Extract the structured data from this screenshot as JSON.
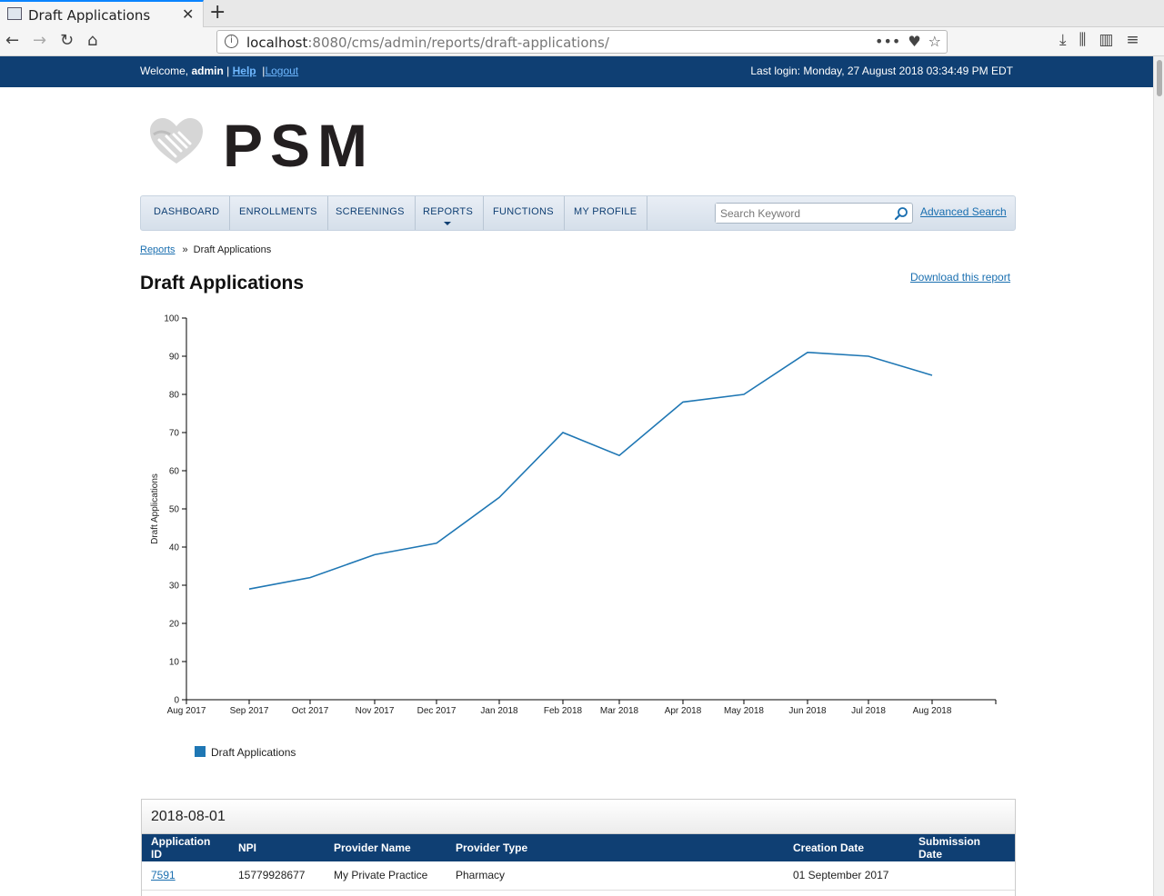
{
  "browser": {
    "tab_title": "Draft Applications",
    "url_host": "localhost",
    "url_rest": ":8080/cms/admin/reports/draft-applications/"
  },
  "topbar": {
    "welcome_prefix": "Welcome,",
    "username": "admin",
    "help_label": "Help",
    "logout_label": "Logout",
    "last_login": "Last login: Monday, 27 August 2018 03:34:49 PM EDT"
  },
  "logo": {
    "text": "PSM"
  },
  "menu": {
    "items": [
      {
        "label": "DASHBOARD"
      },
      {
        "label": "ENROLLMENTS"
      },
      {
        "label": "SCREENINGS"
      },
      {
        "label": "REPORTS"
      },
      {
        "label": "FUNCTIONS"
      },
      {
        "label": "MY PROFILE"
      }
    ],
    "search_placeholder": "Search Keyword",
    "advanced_search_label": "Advanced Search"
  },
  "breadcrumb": {
    "parent": "Reports",
    "separator": "»",
    "current": "Draft Applications"
  },
  "page": {
    "title": "Draft Applications",
    "download_label": "Download this report"
  },
  "chart_data": {
    "type": "line",
    "categories": [
      "Aug 2017",
      "Sep 2017",
      "Oct 2017",
      "Nov 2017",
      "Dec 2017",
      "Jan 2018",
      "Feb 2018",
      "Mar 2018",
      "Apr 2018",
      "May 2018",
      "Jun 2018",
      "Jul 2018",
      "Aug 2018"
    ],
    "series": [
      {
        "name": "Draft Applications",
        "values": [
          null,
          29,
          32,
          38,
          41,
          53,
          70,
          64,
          78,
          80,
          91,
          90,
          85
        ]
      }
    ],
    "ylabel": "Draft Applications",
    "xlabel": "",
    "ylim": [
      0,
      100
    ],
    "yticks": [
      0,
      10,
      20,
      30,
      40,
      50,
      60,
      70,
      80,
      90,
      100
    ],
    "grid": false,
    "legend_position": "bottom-left",
    "colors": {
      "line": "#1f77b4"
    }
  },
  "table": {
    "group_label": "2018-08-01",
    "columns": [
      "Application ID",
      "NPI",
      "Provider Name",
      "Provider Type",
      "Creation Date",
      "Submission Date"
    ],
    "rows": [
      {
        "application_id": "7591",
        "npi": "15779928677",
        "provider_name": "My Private Practice",
        "provider_type": "Pharmacy",
        "creation_date": "01 September 2017",
        "submission_date": ""
      }
    ]
  },
  "colors": {
    "brand_navy": "#0f3f73",
    "link_blue": "#1a6fb0"
  }
}
